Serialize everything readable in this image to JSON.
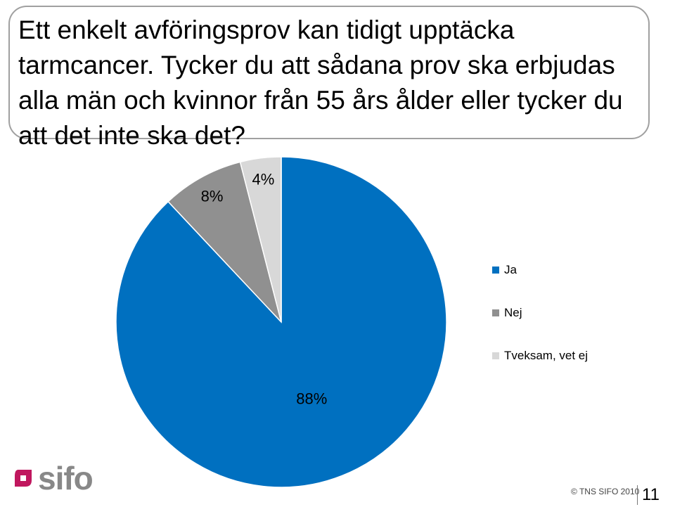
{
  "title": "Ett enkelt avföringsprov kan tidigt upptäcka tarmcancer. Tycker du att sådana prov ska erbjudas alla män och kvinnor från 55 års ålder eller tycker du att det inte ska det?",
  "chart_data": {
    "type": "pie",
    "categories": [
      "Ja",
      "Nej",
      "Tveksam, vet ej"
    ],
    "values": [
      88,
      8,
      4
    ],
    "data_labels": [
      "88%",
      "8%",
      "4%"
    ],
    "colors": [
      "#0070c0",
      "#909090",
      "#d8d8d8"
    ],
    "legend_position": "right"
  },
  "footer": {
    "logo_text": "sifo",
    "copyright": "© TNS SIFO 2010",
    "page_number": "11"
  },
  "colors": {
    "logo_accent": "#c0175e",
    "logo_text": "#888888"
  }
}
